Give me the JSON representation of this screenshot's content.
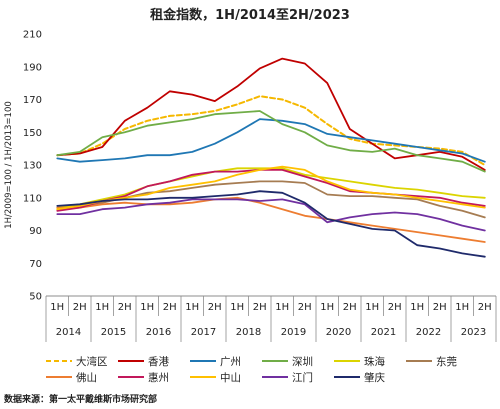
{
  "chart_data": {
    "type": "line",
    "title": "租金指数，1H/2014至2H/2023",
    "ylabel": "1H/2009=100 / 1H/2013=100",
    "xlabel": "",
    "ylim": [
      50,
      210
    ],
    "yticks": [
      50,
      70,
      90,
      110,
      130,
      150,
      170,
      190,
      210
    ],
    "x": [
      "1H",
      "2H",
      "1H",
      "2H",
      "1H",
      "2H",
      "1H",
      "2H",
      "1H",
      "2H",
      "1H",
      "2H",
      "1H",
      "2H",
      "1H",
      "2H",
      "1H",
      "2H",
      "1H",
      "2H"
    ],
    "years": [
      "2014",
      "2015",
      "2016",
      "2017",
      "2018",
      "2019",
      "2020",
      "2021",
      "2022",
      "2023"
    ],
    "grid": false,
    "legend_placement": "bottom",
    "series": [
      {
        "name": "大湾区",
        "color": "#F5B800",
        "dashed": true,
        "values": [
          136,
          137,
          143,
          152,
          157,
          160,
          161,
          163,
          167,
          172,
          170,
          165,
          155,
          146,
          143,
          142,
          141,
          140,
          138,
          130
        ]
      },
      {
        "name": "香港",
        "color": "#C00000",
        "dashed": false,
        "values": [
          136,
          137,
          141,
          157,
          165,
          175,
          173,
          169,
          178,
          189,
          195,
          192,
          180,
          152,
          143,
          134,
          136,
          138,
          135,
          127
        ]
      },
      {
        "name": "广州",
        "color": "#1F77B4",
        "dashed": false,
        "values": [
          134,
          132,
          133,
          134,
          136,
          136,
          138,
          143,
          150,
          158,
          157,
          155,
          149,
          147,
          145,
          143,
          141,
          139,
          137,
          132
        ]
      },
      {
        "name": "深圳",
        "color": "#70AD47",
        "dashed": false,
        "values": [
          136,
          138,
          147,
          150,
          154,
          156,
          158,
          161,
          162,
          163,
          155,
          150,
          142,
          139,
          138,
          140,
          136,
          134,
          132,
          126
        ]
      },
      {
        "name": "珠海",
        "color": "#DBD400",
        "dashed": false,
        "values": [
          104,
          106,
          109,
          112,
          117,
          120,
          123,
          126,
          128,
          128,
          128,
          124,
          122,
          120,
          118,
          116,
          115,
          113,
          111,
          110
        ]
      },
      {
        "name": "东莞",
        "color": "#A67C52",
        "dashed": false,
        "values": [
          103,
          104,
          107,
          110,
          113,
          114,
          116,
          118,
          119,
          120,
          120,
          119,
          112,
          111,
          111,
          110,
          109,
          105,
          102,
          98
        ]
      },
      {
        "name": "佛山",
        "color": "#ED7D31",
        "dashed": false,
        "values": [
          104,
          104,
          106,
          107,
          106,
          106,
          107,
          109,
          110,
          107,
          103,
          99,
          97,
          95,
          93,
          91,
          89,
          87,
          85,
          83
        ]
      },
      {
        "name": "惠州",
        "color": "#C2185B",
        "dashed": false,
        "values": [
          102,
          104,
          108,
          111,
          117,
          120,
          124,
          126,
          126,
          127,
          127,
          123,
          119,
          114,
          113,
          112,
          111,
          110,
          107,
          105
        ]
      },
      {
        "name": "中山",
        "color": "#FFC000",
        "dashed": false,
        "values": [
          103,
          105,
          108,
          110,
          112,
          116,
          118,
          120,
          124,
          127,
          129,
          127,
          120,
          115,
          113,
          112,
          110,
          108,
          106,
          104
        ]
      },
      {
        "name": "江门",
        "color": "#7030A0",
        "dashed": false,
        "values": [
          100,
          100,
          103,
          104,
          106,
          107,
          109,
          109,
          109,
          108,
          109,
          106,
          95,
          98,
          100,
          101,
          100,
          97,
          93,
          90
        ]
      },
      {
        "name": "肇庆",
        "color": "#1F2A6B",
        "dashed": false,
        "values": [
          105,
          106,
          108,
          109,
          109,
          110,
          110,
          111,
          112,
          114,
          113,
          107,
          97,
          94,
          91,
          90,
          81,
          79,
          76,
          74
        ]
      }
    ]
  },
  "source": "数据来源：第一太平戴维斯市场研究部"
}
